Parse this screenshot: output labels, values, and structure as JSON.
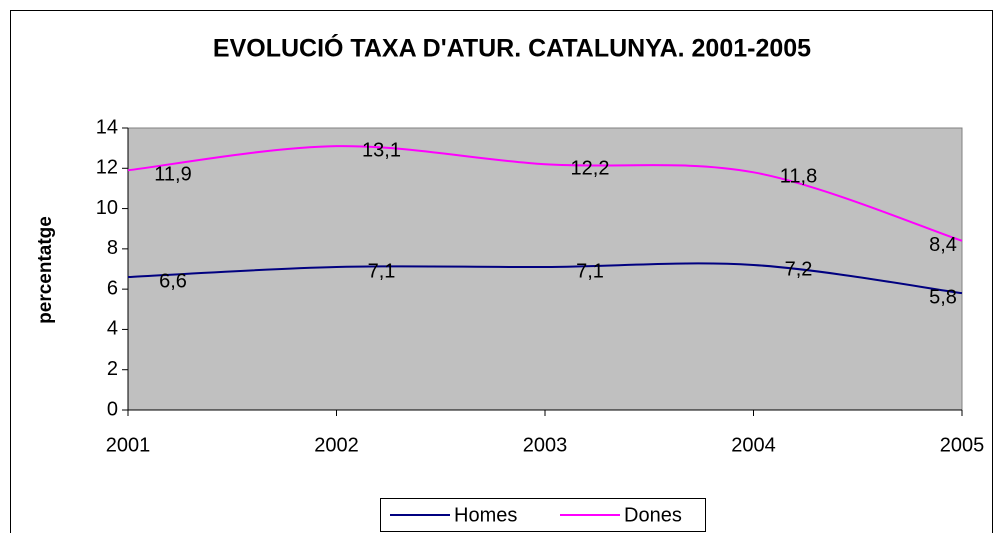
{
  "chart_data": {
    "type": "line",
    "title": "EVOLUCIÓ TAXA D'ATUR. CATALUNYA. 2001-2005",
    "y_label": "percentatge",
    "x": [
      2001,
      2002,
      2003,
      2004,
      2005
    ],
    "xlim": [
      2001,
      2005
    ],
    "xticks": [
      2001,
      2002,
      2003,
      2004,
      2005
    ],
    "ylim": [
      0,
      14
    ],
    "yticks": [
      0,
      2,
      4,
      6,
      8,
      10,
      12,
      14
    ],
    "series": [
      {
        "name": "Homes",
        "color": "#000080",
        "values": [
          6.6,
          7.1,
          7.1,
          7.2,
          5.8
        ],
        "value_labels": [
          "6,6",
          "7,1",
          "7,1",
          "7,2",
          "5,8"
        ]
      },
      {
        "name": "Dones",
        "color": "#ff00ff",
        "values": [
          11.9,
          13.1,
          12.2,
          11.8,
          8.4
        ],
        "value_labels": [
          "11,9",
          "13,1",
          "12,2",
          "11,8",
          "8,4"
        ]
      }
    ],
    "legend": "bottom",
    "smooth": true
  }
}
